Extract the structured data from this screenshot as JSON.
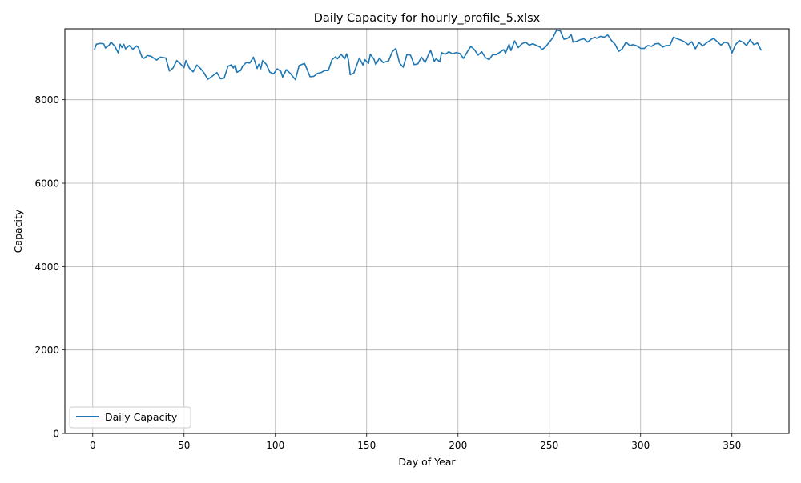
{
  "chart_data": {
    "type": "line",
    "title": "Daily Capacity for hourly_profile_5.xlsx",
    "xlabel": "Day of Year",
    "ylabel": "Capacity",
    "xlim": [
      -15.25,
      381.25
    ],
    "ylim": [
      0,
      9700
    ],
    "xticks": [
      0,
      50,
      100,
      150,
      200,
      250,
      300,
      350
    ],
    "yticks": [
      0,
      2000,
      4000,
      6000,
      8000
    ],
    "grid": true,
    "legend_position": "lower-left",
    "series": [
      {
        "name": "Daily Capacity",
        "color": "#1f77b4",
        "points": [
          [
            1,
            9210
          ],
          [
            2,
            9330
          ],
          [
            4,
            9350
          ],
          [
            6,
            9340
          ],
          [
            7,
            9240
          ],
          [
            9,
            9310
          ],
          [
            10,
            9380
          ],
          [
            12,
            9290
          ],
          [
            14,
            9120
          ],
          [
            15,
            9330
          ],
          [
            16,
            9250
          ],
          [
            17,
            9330
          ],
          [
            18,
            9220
          ],
          [
            20,
            9300
          ],
          [
            22,
            9210
          ],
          [
            24,
            9290
          ],
          [
            25,
            9250
          ],
          [
            27,
            9020
          ],
          [
            28,
            8990
          ],
          [
            30,
            9060
          ],
          [
            32,
            9040
          ],
          [
            35,
            8950
          ],
          [
            37,
            9020
          ],
          [
            40,
            9000
          ],
          [
            42,
            8690
          ],
          [
            44,
            8760
          ],
          [
            46,
            8940
          ],
          [
            48,
            8860
          ],
          [
            50,
            8770
          ],
          [
            51,
            8940
          ],
          [
            53,
            8750
          ],
          [
            55,
            8670
          ],
          [
            57,
            8830
          ],
          [
            59,
            8750
          ],
          [
            61,
            8640
          ],
          [
            63,
            8490
          ],
          [
            65,
            8550
          ],
          [
            68,
            8650
          ],
          [
            70,
            8500
          ],
          [
            72,
            8520
          ],
          [
            74,
            8800
          ],
          [
            76,
            8840
          ],
          [
            77,
            8760
          ],
          [
            78,
            8830
          ],
          [
            79,
            8660
          ],
          [
            81,
            8700
          ],
          [
            82,
            8800
          ],
          [
            84,
            8890
          ],
          [
            86,
            8880
          ],
          [
            88,
            9020
          ],
          [
            90,
            8750
          ],
          [
            91,
            8850
          ],
          [
            92,
            8740
          ],
          [
            93,
            8940
          ],
          [
            95,
            8850
          ],
          [
            97,
            8660
          ],
          [
            99,
            8620
          ],
          [
            101,
            8740
          ],
          [
            103,
            8680
          ],
          [
            104,
            8540
          ],
          [
            106,
            8720
          ],
          [
            108,
            8640
          ],
          [
            111,
            8480
          ],
          [
            113,
            8820
          ],
          [
            116,
            8870
          ],
          [
            119,
            8550
          ],
          [
            121,
            8560
          ],
          [
            123,
            8630
          ],
          [
            125,
            8650
          ],
          [
            127,
            8700
          ],
          [
            129,
            8700
          ],
          [
            131,
            8960
          ],
          [
            133,
            9030
          ],
          [
            134,
            8980
          ],
          [
            136,
            9090
          ],
          [
            138,
            8980
          ],
          [
            139,
            9100
          ],
          [
            140,
            8960
          ],
          [
            141,
            8600
          ],
          [
            143,
            8640
          ],
          [
            145,
            8880
          ],
          [
            146,
            9000
          ],
          [
            148,
            8830
          ],
          [
            149,
            8960
          ],
          [
            151,
            8870
          ],
          [
            152,
            9090
          ],
          [
            154,
            8970
          ],
          [
            155,
            8840
          ],
          [
            157,
            9000
          ],
          [
            159,
            8890
          ],
          [
            162,
            8930
          ],
          [
            164,
            9150
          ],
          [
            166,
            9230
          ],
          [
            168,
            8880
          ],
          [
            170,
            8780
          ],
          [
            172,
            9080
          ],
          [
            174,
            9070
          ],
          [
            176,
            8840
          ],
          [
            178,
            8860
          ],
          [
            180,
            9020
          ],
          [
            182,
            8890
          ],
          [
            184,
            9100
          ],
          [
            185,
            9180
          ],
          [
            187,
            8920
          ],
          [
            188,
            8980
          ],
          [
            190,
            8910
          ],
          [
            191,
            9130
          ],
          [
            193,
            9090
          ],
          [
            195,
            9150
          ],
          [
            197,
            9100
          ],
          [
            199,
            9130
          ],
          [
            201,
            9110
          ],
          [
            203,
            8990
          ],
          [
            205,
            9140
          ],
          [
            207,
            9280
          ],
          [
            209,
            9200
          ],
          [
            211,
            9070
          ],
          [
            213,
            9150
          ],
          [
            215,
            9010
          ],
          [
            217,
            8960
          ],
          [
            219,
            9080
          ],
          [
            221,
            9080
          ],
          [
            223,
            9140
          ],
          [
            225,
            9200
          ],
          [
            226,
            9120
          ],
          [
            228,
            9330
          ],
          [
            229,
            9180
          ],
          [
            231,
            9410
          ],
          [
            233,
            9250
          ],
          [
            235,
            9340
          ],
          [
            237,
            9380
          ],
          [
            239,
            9310
          ],
          [
            241,
            9340
          ],
          [
            243,
            9300
          ],
          [
            245,
            9260
          ],
          [
            246,
            9200
          ],
          [
            248,
            9270
          ],
          [
            250,
            9380
          ],
          [
            252,
            9490
          ],
          [
            254,
            9670
          ],
          [
            256,
            9650
          ],
          [
            258,
            9450
          ],
          [
            260,
            9470
          ],
          [
            262,
            9560
          ],
          [
            263,
            9380
          ],
          [
            265,
            9400
          ],
          [
            267,
            9440
          ],
          [
            269,
            9460
          ],
          [
            271,
            9380
          ],
          [
            273,
            9460
          ],
          [
            275,
            9500
          ],
          [
            276,
            9470
          ],
          [
            278,
            9520
          ],
          [
            280,
            9500
          ],
          [
            282,
            9550
          ],
          [
            284,
            9420
          ],
          [
            286,
            9330
          ],
          [
            288,
            9160
          ],
          [
            290,
            9220
          ],
          [
            292,
            9380
          ],
          [
            294,
            9300
          ],
          [
            296,
            9320
          ],
          [
            298,
            9290
          ],
          [
            300,
            9230
          ],
          [
            302,
            9230
          ],
          [
            304,
            9300
          ],
          [
            306,
            9280
          ],
          [
            308,
            9340
          ],
          [
            310,
            9350
          ],
          [
            312,
            9260
          ],
          [
            314,
            9300
          ],
          [
            316,
            9300
          ],
          [
            318,
            9500
          ],
          [
            320,
            9460
          ],
          [
            322,
            9430
          ],
          [
            324,
            9390
          ],
          [
            326,
            9320
          ],
          [
            328,
            9390
          ],
          [
            330,
            9220
          ],
          [
            332,
            9370
          ],
          [
            334,
            9290
          ],
          [
            336,
            9360
          ],
          [
            338,
            9420
          ],
          [
            340,
            9470
          ],
          [
            342,
            9390
          ],
          [
            344,
            9310
          ],
          [
            346,
            9380
          ],
          [
            348,
            9350
          ],
          [
            350,
            9120
          ],
          [
            352,
            9320
          ],
          [
            354,
            9420
          ],
          [
            356,
            9380
          ],
          [
            358,
            9300
          ],
          [
            360,
            9440
          ],
          [
            362,
            9320
          ],
          [
            364,
            9360
          ],
          [
            366,
            9190
          ]
        ]
      }
    ]
  }
}
